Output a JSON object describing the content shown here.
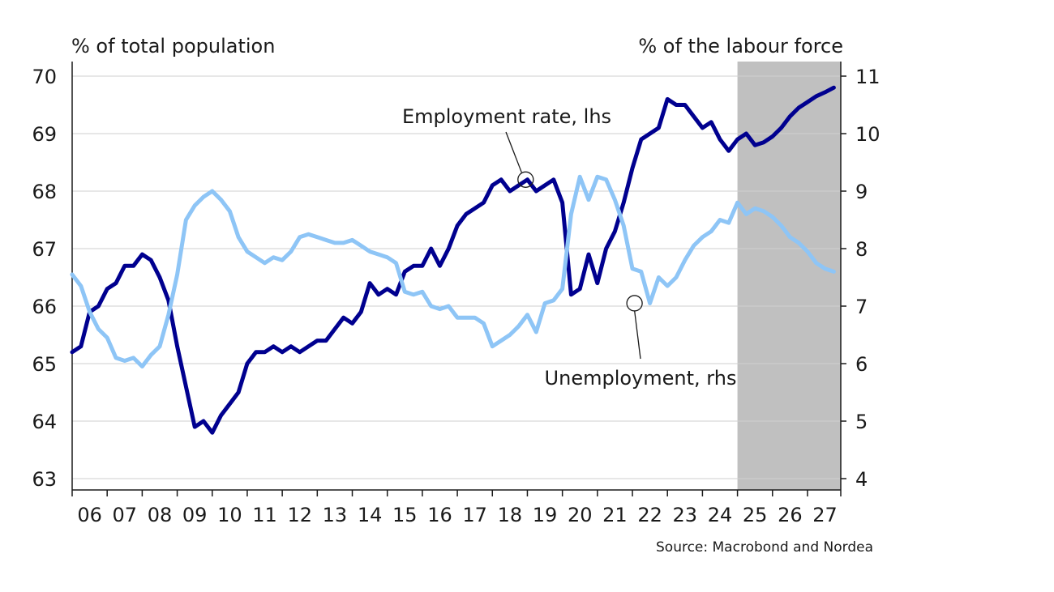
{
  "chart_data": {
    "type": "line",
    "left_axis_title": "% of total population",
    "right_axis_title": "% of the labour force",
    "source": "Source: Macrobond and Nordea",
    "x_tick_labels": [
      "06",
      "07",
      "08",
      "09",
      "10",
      "11",
      "12",
      "13",
      "14",
      "15",
      "16",
      "17",
      "18",
      "19",
      "20",
      "21",
      "22",
      "23",
      "24",
      "25",
      "26",
      "27"
    ],
    "x_range": [
      2006,
      2027.95
    ],
    "y_left": {
      "range": [
        63,
        70
      ],
      "ticks": [
        63,
        64,
        65,
        66,
        67,
        68,
        69,
        70
      ]
    },
    "y_right": {
      "range": [
        4,
        11
      ],
      "ticks": [
        4,
        5,
        6,
        7,
        8,
        9,
        10,
        11
      ]
    },
    "grid": true,
    "forecast_shading": {
      "start": 2025.0,
      "end": 2027.95,
      "color": "#c0c0c0"
    },
    "annotations": [
      {
        "text": "Employment rate, lhs",
        "series": "employment",
        "point": [
          2018.95,
          68.2
        ]
      },
      {
        "text": "Unemployment, rhs",
        "series": "unemployment",
        "point": [
          2022.06,
          7.05
        ]
      }
    ],
    "series": [
      {
        "id": "employment",
        "axis": "left",
        "color": "#00008f",
        "x": [
          2006.0,
          2006.25,
          2006.5,
          2006.75,
          2007.0,
          2007.25,
          2007.5,
          2007.75,
          2008.0,
          2008.25,
          2008.5,
          2008.75,
          2009.0,
          2009.25,
          2009.5,
          2009.75,
          2010.0,
          2010.25,
          2010.5,
          2010.75,
          2011.0,
          2011.25,
          2011.5,
          2011.75,
          2012.0,
          2012.25,
          2012.5,
          2012.75,
          2013.0,
          2013.25,
          2013.5,
          2013.75,
          2014.0,
          2014.25,
          2014.5,
          2014.75,
          2015.0,
          2015.25,
          2015.5,
          2015.75,
          2016.0,
          2016.25,
          2016.5,
          2016.75,
          2017.0,
          2017.25,
          2017.5,
          2017.75,
          2018.0,
          2018.25,
          2018.5,
          2018.75,
          2019.0,
          2019.25,
          2019.5,
          2019.75,
          2020.0,
          2020.25,
          2020.5,
          2020.75,
          2021.0,
          2021.25,
          2021.5,
          2021.75,
          2022.0,
          2022.25,
          2022.5,
          2022.75,
          2023.0,
          2023.25,
          2023.5,
          2023.75,
          2024.0,
          2024.25,
          2024.5,
          2024.75,
          2025.0,
          2025.25,
          2025.5,
          2025.75,
          2026.0,
          2026.25,
          2026.5,
          2026.75,
          2027.0,
          2027.25,
          2027.5,
          2027.75
        ],
        "y": [
          65.2,
          65.3,
          65.9,
          66.0,
          66.3,
          66.4,
          66.7,
          66.7,
          66.9,
          66.8,
          66.5,
          66.1,
          65.3,
          64.6,
          63.9,
          64.0,
          63.8,
          64.1,
          64.3,
          64.5,
          65.0,
          65.2,
          65.2,
          65.3,
          65.2,
          65.3,
          65.2,
          65.3,
          65.4,
          65.4,
          65.6,
          65.8,
          65.7,
          65.9,
          66.4,
          66.2,
          66.3,
          66.2,
          66.6,
          66.7,
          66.7,
          67.0,
          66.7,
          67.0,
          67.4,
          67.6,
          67.7,
          67.8,
          68.1,
          68.2,
          68.0,
          68.1,
          68.2,
          68.0,
          68.1,
          68.2,
          67.8,
          66.2,
          66.3,
          66.9,
          66.4,
          67.0,
          67.3,
          67.8,
          68.4,
          68.9,
          69.0,
          69.1,
          69.6,
          69.5,
          69.5,
          69.3,
          69.1,
          69.2,
          68.9,
          68.7,
          68.9,
          69.0,
          68.8,
          68.85,
          68.95,
          69.1,
          69.3,
          69.45,
          69.55,
          69.65,
          69.72,
          69.8
        ]
      },
      {
        "id": "unemployment",
        "axis": "right",
        "color": "#8ec5f6",
        "x": [
          2006.0,
          2006.25,
          2006.5,
          2006.75,
          2007.0,
          2007.25,
          2007.5,
          2007.75,
          2008.0,
          2008.25,
          2008.5,
          2008.75,
          2009.0,
          2009.25,
          2009.5,
          2009.75,
          2010.0,
          2010.25,
          2010.5,
          2010.75,
          2011.0,
          2011.25,
          2011.5,
          2011.75,
          2012.0,
          2012.25,
          2012.5,
          2012.75,
          2013.0,
          2013.25,
          2013.5,
          2013.75,
          2014.0,
          2014.25,
          2014.5,
          2014.75,
          2015.0,
          2015.25,
          2015.5,
          2015.75,
          2016.0,
          2016.25,
          2016.5,
          2016.75,
          2017.0,
          2017.25,
          2017.5,
          2017.75,
          2018.0,
          2018.25,
          2018.5,
          2018.75,
          2019.0,
          2019.25,
          2019.5,
          2019.75,
          2020.0,
          2020.25,
          2020.5,
          2020.75,
          2021.0,
          2021.25,
          2021.5,
          2021.75,
          2022.0,
          2022.25,
          2022.5,
          2022.75,
          2023.0,
          2023.25,
          2023.5,
          2023.75,
          2024.0,
          2024.25,
          2024.5,
          2024.75,
          2025.0,
          2025.25,
          2025.5,
          2025.75,
          2026.0,
          2026.25,
          2026.5,
          2026.75,
          2027.0,
          2027.25,
          2027.5,
          2027.75
        ],
        "y": [
          7.55,
          7.35,
          6.9,
          6.6,
          6.45,
          6.1,
          6.05,
          6.1,
          5.95,
          6.15,
          6.3,
          6.85,
          7.55,
          8.5,
          8.75,
          8.9,
          9.0,
          8.85,
          8.65,
          8.2,
          7.95,
          7.85,
          7.75,
          7.85,
          7.8,
          7.95,
          8.2,
          8.25,
          8.2,
          8.15,
          8.1,
          8.1,
          8.15,
          8.05,
          7.95,
          7.9,
          7.85,
          7.75,
          7.25,
          7.2,
          7.25,
          7.0,
          6.95,
          7.0,
          6.8,
          6.8,
          6.8,
          6.7,
          6.3,
          6.4,
          6.5,
          6.65,
          6.85,
          6.55,
          7.05,
          7.1,
          7.3,
          8.6,
          9.25,
          8.85,
          9.25,
          9.2,
          8.85,
          8.4,
          7.65,
          7.6,
          7.05,
          7.5,
          7.35,
          7.5,
          7.8,
          8.05,
          8.2,
          8.3,
          8.5,
          8.45,
          8.8,
          8.6,
          8.7,
          8.65,
          8.55,
          8.4,
          8.2,
          8.1,
          7.95,
          7.75,
          7.65,
          7.6
        ]
      }
    ]
  }
}
